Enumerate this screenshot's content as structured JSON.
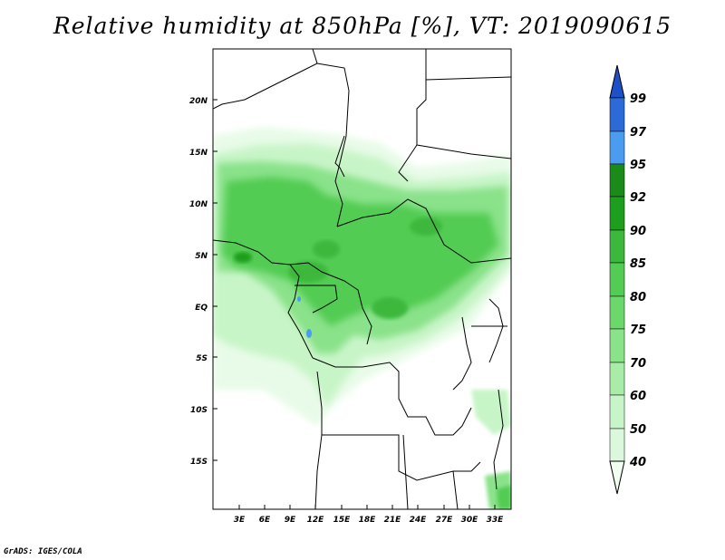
{
  "title": "Relative humidity at 850hPa [%], VT: 2019090615",
  "credit": "GrADS: IGES/COLA",
  "map": {
    "lat_labels": [
      "20N",
      "15N",
      "10N",
      "5N",
      "EQ",
      "5S",
      "10S",
      "15S"
    ],
    "lon_labels": [
      "3E",
      "6E",
      "9E",
      "12E",
      "15E",
      "18E",
      "21E",
      "24E",
      "27E",
      "30E",
      "33E"
    ]
  },
  "colorbar": {
    "levels": [
      "40",
      "50",
      "60",
      "70",
      "75",
      "80",
      "85",
      "90",
      "92",
      "95",
      "97",
      "99"
    ],
    "colors": [
      "#f0fff0",
      "#dcf8dc",
      "#c8f5c8",
      "#a8eca8",
      "#8ae28a",
      "#6cd86c",
      "#52cc52",
      "#3cb83c",
      "#1e9e1e",
      "#1a8a1a",
      "#4a9cf0",
      "#2c6ad8",
      "#1e50c8"
    ]
  }
}
